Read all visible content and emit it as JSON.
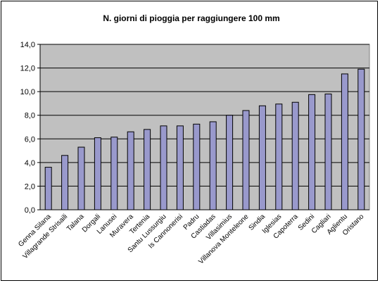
{
  "chart_data": {
    "type": "bar",
    "title": "N. giorni di pioggia per raggiungere 100 mm",
    "xlabel": "",
    "ylabel": "",
    "ylim": [
      0,
      14
    ],
    "yticks": [
      "0,0",
      "2,0",
      "4,0",
      "6,0",
      "8,0",
      "10,0",
      "12,0",
      "14,0"
    ],
    "grid": true,
    "legend": "none",
    "categories": [
      "Genna Silana",
      "Villagrande Strisaili",
      "Talana",
      "Dorgali",
      "Lanusei",
      "Muravera",
      "Tertenia",
      "Santu Lussurgiu",
      "Is Cannonerisi",
      "Padru",
      "Castiadas",
      "Villasimius",
      "Villanova Monteleone",
      "Sindia",
      "Iglesias",
      "Capoterra",
      "Sedini",
      "Cagliari",
      "Aglientu",
      "Oristano"
    ],
    "values": [
      3.6,
      4.6,
      5.3,
      6.1,
      6.15,
      6.6,
      6.8,
      7.1,
      7.1,
      7.25,
      7.45,
      8.0,
      8.4,
      8.8,
      8.95,
      9.1,
      9.75,
      9.8,
      11.5,
      11.9
    ],
    "colors": {
      "plot_bg": "#c0c0c0",
      "bar_fill": "#9999cc",
      "bar_stroke": "#000000",
      "grid": "#000000"
    }
  }
}
